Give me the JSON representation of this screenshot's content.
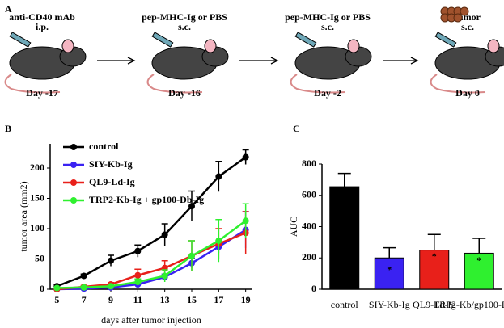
{
  "panels": [
    "A",
    "B",
    "C"
  ],
  "schematic": {
    "steps": [
      {
        "label": "anti-CD40 mAb",
        "route": "i.p.",
        "day": "Day -17"
      },
      {
        "label": "pep-MHC-Ig or PBS",
        "route": "s.c.",
        "day": "Day -16"
      },
      {
        "label": "pep-MHC-Ig or PBS",
        "route": "s.c.",
        "day": "Day -2"
      },
      {
        "label": "tumor",
        "route": "s.c.",
        "day": "Day 0"
      }
    ]
  },
  "chart_data": [
    {
      "type": "line",
      "xlabel": "days after tumor injection",
      "ylabel": "tumor area (mm2)",
      "x": [
        5,
        7,
        9,
        11,
        13,
        15,
        17,
        19
      ],
      "xlim": [
        4.5,
        19.5
      ],
      "xticks": [
        5,
        7,
        9,
        11,
        13,
        15,
        17,
        19
      ],
      "ylim": [
        0,
        240
      ],
      "yticks": [
        0,
        50,
        100,
        150,
        200
      ],
      "legend": "upper left",
      "series": [
        {
          "name": "control",
          "color": "#000000",
          "values": [
            5,
            22,
            47,
            63,
            90,
            137,
            186,
            218
          ],
          "errors": [
            3,
            3,
            9,
            10,
            18,
            25,
            25,
            12
          ]
        },
        {
          "name": "SIY-Kb-Ig",
          "color": "#3a22f2",
          "values": [
            0,
            1,
            3,
            8,
            20,
            43,
            70,
            98
          ],
          "errors": [
            1,
            1,
            2,
            3,
            5,
            8,
            10,
            30
          ]
        },
        {
          "name": "QL9-Ld-Ig",
          "color": "#e8201a",
          "values": [
            0,
            4,
            8,
            23,
            35,
            55,
            75,
            93
          ],
          "errors": [
            1,
            2,
            3,
            10,
            12,
            25,
            25,
            35
          ]
        },
        {
          "name": "TRP2-Kb-Ig + gp100-Db-Ig",
          "color": "#2ff02f",
          "values": [
            2,
            3,
            5,
            12,
            22,
            55,
            80,
            113
          ],
          "errors": [
            1,
            2,
            2,
            5,
            10,
            25,
            35,
            28
          ]
        }
      ]
    },
    {
      "type": "bar",
      "ylabel": "AUC",
      "categories": [
        "control",
        "SIY-Kb-Ig",
        "QL9-Ld-Ig",
        "TRP2-Kb/gp100-Db-Ig"
      ],
      "values": [
        655,
        200,
        250,
        230
      ],
      "errors": [
        85,
        65,
        100,
        95
      ],
      "colors": [
        "#000000",
        "#3a22f2",
        "#e8201a",
        "#2ff02f"
      ],
      "annotations": [
        null,
        "*",
        "*",
        "*"
      ],
      "ylim": [
        0,
        800
      ],
      "yticks": [
        0,
        200,
        400,
        600,
        800
      ]
    }
  ]
}
